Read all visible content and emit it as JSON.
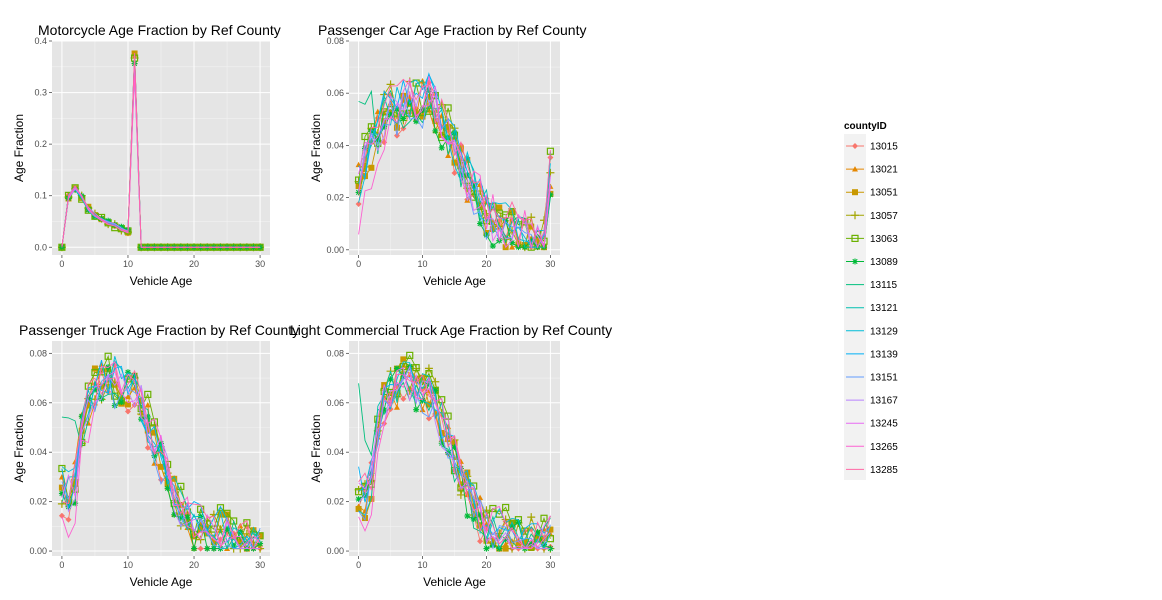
{
  "legend": {
    "title": "countyID",
    "entries": [
      {
        "label": "13015",
        "color": "#F8766D",
        "marker": "diamond"
      },
      {
        "label": "13021",
        "color": "#E58700",
        "marker": "triangle"
      },
      {
        "label": "13051",
        "color": "#C99800",
        "marker": "square"
      },
      {
        "label": "13057",
        "color": "#A3A500",
        "marker": "plus"
      },
      {
        "label": "13063",
        "color": "#6BB100",
        "marker": "squareopen"
      },
      {
        "label": "13089",
        "color": "#00BA38",
        "marker": "star"
      },
      {
        "label": "13115",
        "color": "#00BF7D",
        "marker": "none"
      },
      {
        "label": "13121",
        "color": "#00C0AF",
        "marker": "none"
      },
      {
        "label": "13129",
        "color": "#00BCD8",
        "marker": "none"
      },
      {
        "label": "13139",
        "color": "#00B0F6",
        "marker": "none"
      },
      {
        "label": "13151",
        "color": "#619CFF",
        "marker": "none"
      },
      {
        "label": "13167",
        "color": "#B983FF",
        "marker": "none"
      },
      {
        "label": "13245",
        "color": "#E76BF3",
        "marker": "none"
      },
      {
        "label": "13265",
        "color": "#FD61D1",
        "marker": "none"
      },
      {
        "label": "13285",
        "color": "#FF67A4",
        "marker": "none"
      }
    ]
  },
  "chart_data": [
    {
      "type": "line",
      "title": "Motorcycle Age Fraction by Ref County",
      "xlabel": "Vehicle Age",
      "ylabel": "Age Fraction",
      "xlim": [
        -1.5,
        31.5
      ],
      "ylim": [
        -0.015,
        0.4
      ],
      "xticks": [
        0,
        10,
        20,
        30
      ],
      "yticks": [
        0.0,
        0.1,
        0.2,
        0.3,
        0.4
      ],
      "ytick_labels": [
        "0.0",
        "0.1",
        "0.2",
        "0.3",
        "0.4"
      ],
      "x": [
        0,
        1,
        2,
        3,
        4,
        5,
        6,
        7,
        8,
        9,
        10,
        11,
        12,
        13,
        14,
        15,
        16,
        17,
        18,
        19,
        20,
        21,
        22,
        23,
        24,
        25,
        26,
        27,
        28,
        29,
        30
      ],
      "base": [
        0,
        0.098,
        0.115,
        0.097,
        0.075,
        0.062,
        0.054,
        0.048,
        0.042,
        0.036,
        0.031,
        0.355,
        0,
        0,
        0,
        0,
        0,
        0,
        0,
        0,
        0,
        0,
        0,
        0,
        0,
        0,
        0,
        0,
        0,
        0,
        0
      ],
      "amplitude": 0.008,
      "peak_spread": 0.05
    },
    {
      "type": "line",
      "title": "Passenger Car Age Fraction by Ref County",
      "xlabel": "Vehicle Age",
      "ylabel": "Age Fraction",
      "xlim": [
        -1.5,
        31.5
      ],
      "ylim": [
        -0.002,
        0.08
      ],
      "xticks": [
        0,
        10,
        20,
        30
      ],
      "yticks": [
        0.0,
        0.02,
        0.04,
        0.06,
        0.08
      ],
      "ytick_labels": [
        "0.00",
        "0.02",
        "0.04",
        "0.06",
        "0.08"
      ],
      "x": [
        0,
        1,
        2,
        3,
        4,
        5,
        6,
        7,
        8,
        9,
        10,
        11,
        12,
        13,
        14,
        15,
        16,
        17,
        18,
        19,
        20,
        21,
        22,
        23,
        24,
        25,
        26,
        27,
        28,
        29,
        30
      ],
      "base": [
        0.025,
        0.033,
        0.04,
        0.046,
        0.051,
        0.054,
        0.055,
        0.056,
        0.057,
        0.058,
        0.058,
        0.059,
        0.054,
        0.048,
        0.044,
        0.04,
        0.034,
        0.028,
        0.023,
        0.019,
        0.015,
        0.012,
        0.01,
        0.008,
        0.007,
        0.006,
        0.005,
        0.004,
        0.003,
        0.002,
        0.03
      ],
      "amplitude": 0.009
    },
    {
      "type": "line",
      "title": "Passenger Truck Age Fraction by Ref County",
      "xlabel": "Vehicle Age",
      "ylabel": "Age Fraction",
      "xlim": [
        -1.5,
        31.5
      ],
      "ylim": [
        -0.002,
        0.085
      ],
      "xticks": [
        0,
        10,
        20,
        30
      ],
      "yticks": [
        0.0,
        0.02,
        0.04,
        0.06,
        0.08
      ],
      "ytick_labels": [
        "0.00",
        "0.02",
        "0.04",
        "0.06",
        "0.08"
      ],
      "x": [
        0,
        1,
        2,
        3,
        4,
        5,
        6,
        7,
        8,
        9,
        10,
        11,
        12,
        13,
        14,
        15,
        16,
        17,
        18,
        19,
        20,
        21,
        22,
        23,
        24,
        25,
        26,
        27,
        28,
        29,
        30
      ],
      "base": [
        0.024,
        0.022,
        0.03,
        0.05,
        0.06,
        0.065,
        0.068,
        0.07,
        0.069,
        0.067,
        0.066,
        0.065,
        0.06,
        0.052,
        0.045,
        0.038,
        0.03,
        0.024,
        0.018,
        0.014,
        0.011,
        0.01,
        0.009,
        0.008,
        0.007,
        0.006,
        0.005,
        0.004,
        0.004,
        0.003,
        0.003
      ],
      "amplitude": 0.009
    },
    {
      "type": "line",
      "title": "Light Commercial Truck Age Fraction by Ref County",
      "xlabel": "Vehicle Age",
      "ylabel": "Age Fraction",
      "xlim": [
        -1.5,
        31.5
      ],
      "ylim": [
        -0.002,
        0.085
      ],
      "xticks": [
        0,
        10,
        20,
        30
      ],
      "yticks": [
        0.0,
        0.02,
        0.04,
        0.06,
        0.08
      ],
      "ytick_labels": [
        "0.00",
        "0.02",
        "0.04",
        "0.06",
        "0.08"
      ],
      "x": [
        0,
        1,
        2,
        3,
        4,
        5,
        6,
        7,
        8,
        9,
        10,
        11,
        12,
        13,
        14,
        15,
        16,
        17,
        18,
        19,
        20,
        21,
        22,
        23,
        24,
        25,
        26,
        27,
        28,
        29,
        30
      ],
      "base": [
        0.024,
        0.022,
        0.03,
        0.05,
        0.06,
        0.065,
        0.068,
        0.07,
        0.069,
        0.067,
        0.066,
        0.065,
        0.06,
        0.052,
        0.045,
        0.038,
        0.03,
        0.024,
        0.018,
        0.014,
        0.011,
        0.01,
        0.009,
        0.008,
        0.007,
        0.006,
        0.005,
        0.004,
        0.004,
        0.003,
        0.006
      ],
      "amplitude": 0.009
    }
  ]
}
